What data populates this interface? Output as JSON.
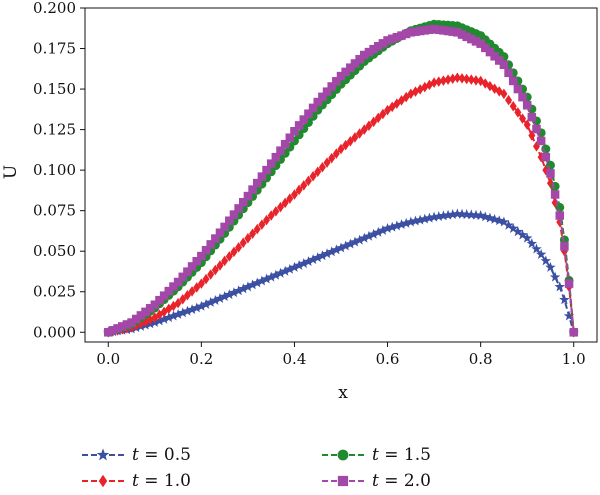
{
  "chart_data": {
    "type": "line",
    "xlabel": "x",
    "ylabel": "U",
    "xlim": [
      -0.05,
      1.05
    ],
    "ylim": [
      -0.006,
      0.2
    ],
    "xticks": [
      "0.0",
      "0.2",
      "0.4",
      "0.6",
      "0.8",
      "1.0"
    ],
    "yticks": [
      "0.000",
      "0.025",
      "0.050",
      "0.075",
      "0.100",
      "0.125",
      "0.150",
      "0.175",
      "0.200"
    ],
    "grid": false,
    "legend_position": "bottom",
    "series": [
      {
        "name": "t = 0.5",
        "var": "t",
        "val": "0.5",
        "color": "#3b4fa3",
        "marker": "star",
        "x": [
          0.0,
          0.05,
          0.1,
          0.15,
          0.2,
          0.25,
          0.3,
          0.35,
          0.4,
          0.45,
          0.5,
          0.55,
          0.6,
          0.65,
          0.7,
          0.75,
          0.8,
          0.85,
          0.9,
          0.93,
          0.95,
          0.97,
          0.98,
          0.99,
          1.0
        ],
        "y": [
          0.0,
          0.002,
          0.006,
          0.011,
          0.016,
          0.022,
          0.028,
          0.034,
          0.04,
          0.046,
          0.052,
          0.058,
          0.064,
          0.068,
          0.071,
          0.073,
          0.072,
          0.068,
          0.058,
          0.048,
          0.04,
          0.028,
          0.02,
          0.01,
          0.0
        ]
      },
      {
        "name": "t = 1.0",
        "var": "t",
        "val": "1.0",
        "color": "#e8232a",
        "marker": "diamond",
        "x": [
          0.0,
          0.05,
          0.1,
          0.15,
          0.2,
          0.25,
          0.3,
          0.35,
          0.4,
          0.45,
          0.5,
          0.55,
          0.6,
          0.65,
          0.7,
          0.75,
          0.8,
          0.85,
          0.9,
          0.93,
          0.95,
          0.97,
          0.98,
          0.99,
          1.0
        ],
        "y": [
          0.0,
          0.003,
          0.009,
          0.018,
          0.03,
          0.044,
          0.058,
          0.072,
          0.085,
          0.099,
          0.113,
          0.125,
          0.137,
          0.147,
          0.154,
          0.157,
          0.155,
          0.147,
          0.128,
          0.108,
          0.092,
          0.068,
          0.05,
          0.028,
          0.0
        ]
      },
      {
        "name": "t = 1.5",
        "var": "t",
        "val": "1.5",
        "color": "#1f8a2e",
        "marker": "circle",
        "x": [
          0.0,
          0.05,
          0.1,
          0.15,
          0.2,
          0.25,
          0.3,
          0.35,
          0.4,
          0.45,
          0.5,
          0.55,
          0.6,
          0.65,
          0.7,
          0.75,
          0.8,
          0.85,
          0.9,
          0.93,
          0.95,
          0.97,
          0.98,
          0.99,
          1.0
        ],
        "y": [
          0.0,
          0.005,
          0.015,
          0.028,
          0.043,
          0.061,
          0.08,
          0.099,
          0.118,
          0.137,
          0.153,
          0.167,
          0.178,
          0.186,
          0.19,
          0.189,
          0.183,
          0.17,
          0.145,
          0.123,
          0.103,
          0.077,
          0.057,
          0.032,
          0.0
        ]
      },
      {
        "name": "t = 2.0",
        "var": "t",
        "val": "2.0",
        "color": "#a347a8",
        "marker": "square",
        "x": [
          0.0,
          0.05,
          0.1,
          0.15,
          0.2,
          0.25,
          0.3,
          0.35,
          0.4,
          0.45,
          0.5,
          0.55,
          0.6,
          0.65,
          0.7,
          0.75,
          0.8,
          0.85,
          0.9,
          0.93,
          0.95,
          0.97,
          0.98,
          0.99,
          1.0
        ],
        "y": [
          0.0,
          0.006,
          0.017,
          0.031,
          0.047,
          0.065,
          0.084,
          0.104,
          0.124,
          0.142,
          0.158,
          0.171,
          0.18,
          0.185,
          0.187,
          0.185,
          0.178,
          0.165,
          0.14,
          0.118,
          0.098,
          0.072,
          0.053,
          0.03,
          0.0
        ]
      }
    ]
  }
}
